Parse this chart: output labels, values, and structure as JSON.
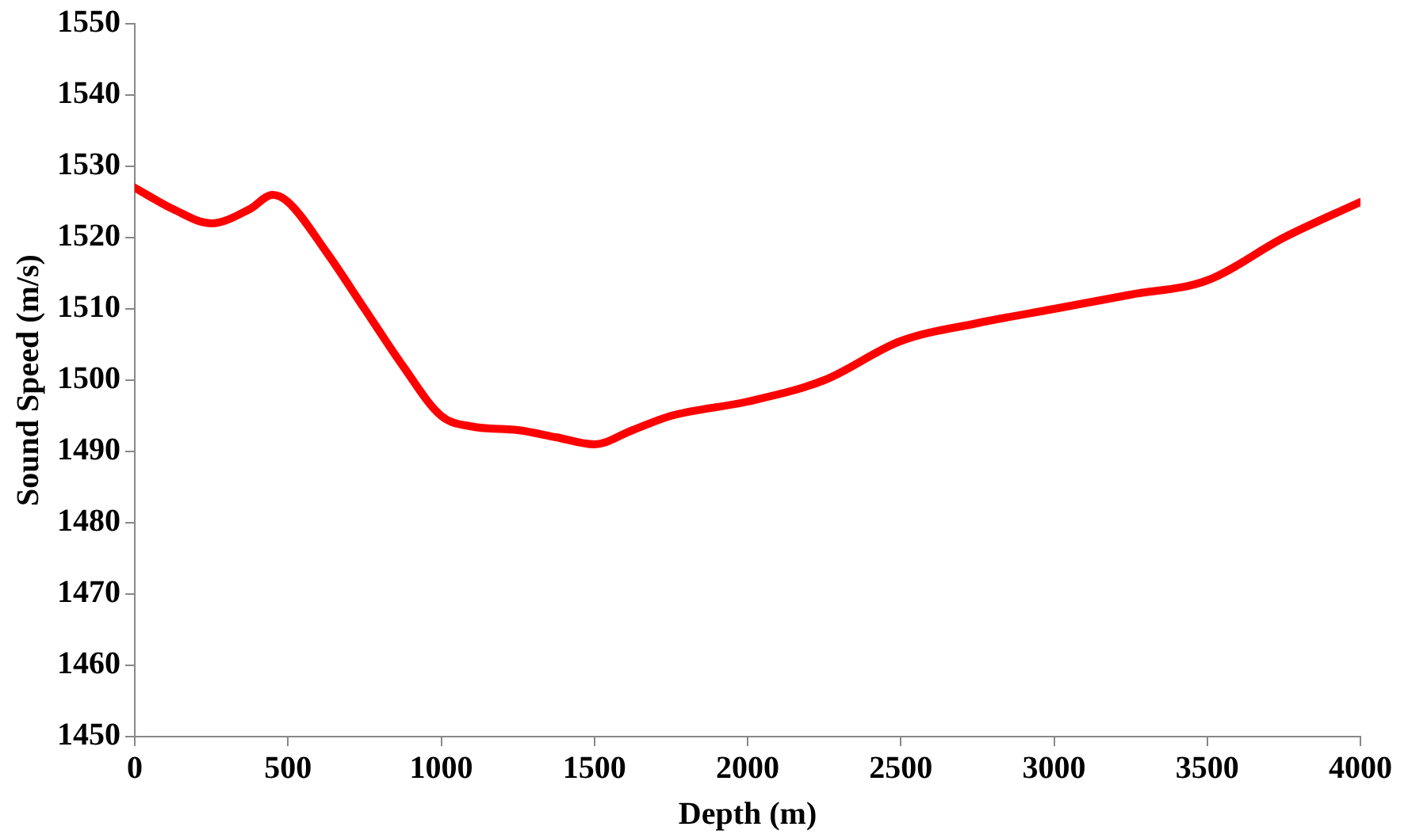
{
  "chart_data": {
    "type": "line",
    "xlabel": "Depth (m)",
    "ylabel": "Sound Speed (m/s)",
    "x": [
      0,
      125,
      250,
      375,
      450,
      500,
      625,
      750,
      875,
      1000,
      1100,
      1250,
      1375,
      1500,
      1625,
      1750,
      2000,
      2250,
      2500,
      2750,
      3000,
      3250,
      3500,
      3750,
      4000
    ],
    "series": [
      {
        "color": "#ff0000",
        "values": [
          1527,
          1524,
          1522,
          1524,
          1526,
          1525,
          1518,
          1510,
          1502,
          1495,
          1493.5,
          1493,
          1492,
          1491,
          1493,
          1495,
          1497,
          1500,
          1505.5,
          1508,
          1510,
          1512,
          1514,
          1520,
          1525
        ]
      }
    ],
    "xlim": [
      0,
      4000
    ],
    "xticks": [
      0,
      500,
      1000,
      1500,
      2000,
      2500,
      3000,
      3500,
      4000
    ],
    "ylim": [
      1450,
      1550
    ],
    "yticks": [
      1450,
      1460,
      1470,
      1480,
      1490,
      1500,
      1510,
      1520,
      1530,
      1540,
      1550
    ],
    "grid": false,
    "legend": false,
    "marker": "none",
    "line_style": "solid"
  }
}
